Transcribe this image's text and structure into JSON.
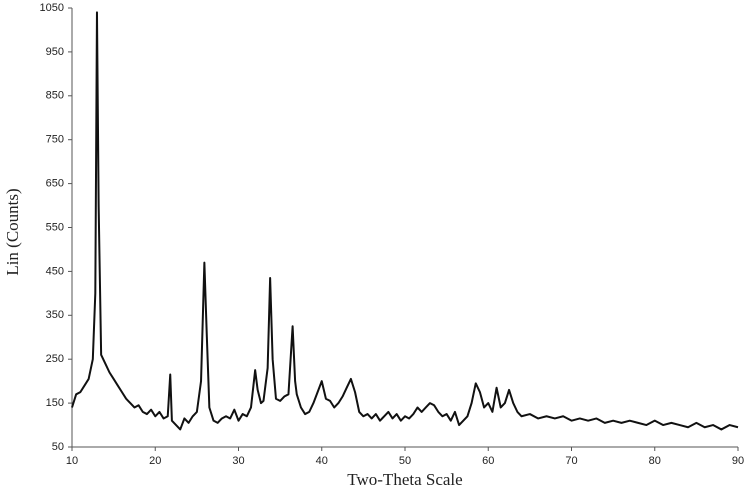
{
  "chart_data": {
    "type": "line",
    "x_label": "Two-Theta Scale",
    "y_label": "Lin (Counts)",
    "xlim": [
      10,
      90
    ],
    "ylim": [
      50,
      1050
    ],
    "xticks": [
      10,
      20,
      30,
      40,
      50,
      60,
      70,
      80,
      90
    ],
    "yticks": [
      50,
      150,
      250,
      350,
      450,
      550,
      650,
      750,
      850,
      950,
      1050
    ],
    "grid": false,
    "series": [
      {
        "color": "#111111",
        "x": [
          10,
          10.5,
          11,
          11.5,
          12,
          12.5,
          12.8,
          13,
          13.2,
          13.5,
          14,
          14.5,
          15,
          15.5,
          16,
          16.5,
          17,
          17.5,
          18,
          18.5,
          19,
          19.5,
          20,
          20.5,
          21,
          21.5,
          21.8,
          22,
          22.5,
          23,
          23.5,
          24,
          24.5,
          25,
          25.5,
          25.9,
          26.2,
          26.5,
          27,
          27.5,
          28,
          28.5,
          29,
          29.5,
          30,
          30.5,
          31,
          31.5,
          32,
          32.3,
          32.7,
          33,
          33.5,
          33.8,
          34.1,
          34.5,
          35,
          35.5,
          36,
          36.5,
          36.8,
          37,
          37.5,
          38,
          38.5,
          39,
          39.5,
          40,
          40.5,
          41,
          41.5,
          42,
          42.5,
          43,
          43.5,
          44,
          44.5,
          45,
          45.5,
          46,
          46.5,
          47,
          47.5,
          48,
          48.5,
          49,
          49.5,
          50,
          50.5,
          51,
          51.5,
          52,
          52.5,
          53,
          53.5,
          54,
          54.5,
          55,
          55.5,
          56,
          56.5,
          57,
          57.5,
          58,
          58.5,
          59,
          59.5,
          60,
          60.5,
          61,
          61.5,
          62,
          62.5,
          63,
          63.5,
          64,
          65,
          66,
          67,
          68,
          69,
          70,
          71,
          72,
          73,
          74,
          75,
          76,
          77,
          78,
          79,
          80,
          81,
          82,
          83,
          84,
          85,
          86,
          87,
          88,
          89,
          90
        ],
        "values": [
          140,
          170,
          175,
          190,
          205,
          250,
          400,
          1040,
          600,
          260,
          240,
          220,
          205,
          190,
          175,
          160,
          150,
          140,
          145,
          130,
          125,
          135,
          120,
          130,
          115,
          120,
          215,
          110,
          100,
          90,
          115,
          105,
          120,
          130,
          200,
          470,
          300,
          140,
          110,
          105,
          115,
          120,
          115,
          135,
          110,
          125,
          120,
          140,
          225,
          180,
          150,
          155,
          230,
          435,
          250,
          160,
          155,
          165,
          170,
          325,
          200,
          170,
          140,
          125,
          130,
          150,
          175,
          200,
          160,
          155,
          140,
          150,
          165,
          185,
          205,
          175,
          130,
          120,
          125,
          115,
          125,
          110,
          120,
          130,
          115,
          125,
          110,
          120,
          115,
          125,
          140,
          130,
          140,
          150,
          145,
          130,
          120,
          125,
          110,
          130,
          100,
          110,
          120,
          150,
          195,
          175,
          140,
          150,
          130,
          185,
          140,
          150,
          180,
          150,
          130,
          120,
          125,
          115,
          120,
          115,
          120,
          110,
          115,
          110,
          115,
          105,
          110,
          105,
          110,
          105,
          100,
          110,
          100,
          105,
          100,
          95,
          105,
          95,
          100,
          90,
          100,
          95
        ]
      }
    ]
  }
}
